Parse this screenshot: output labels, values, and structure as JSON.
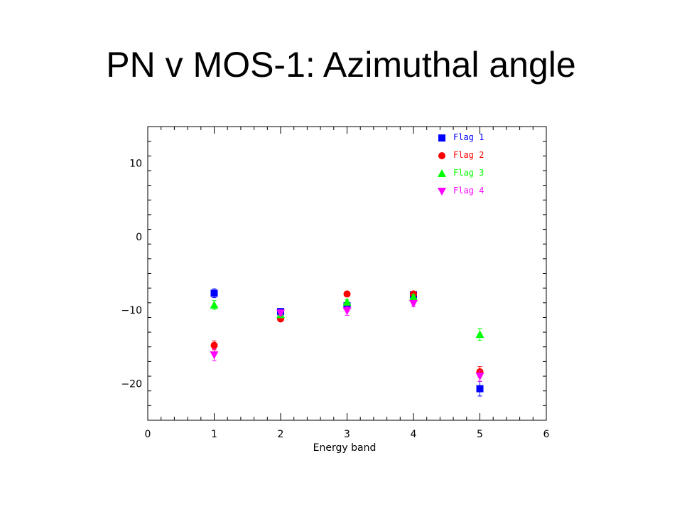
{
  "title": "PN v MOS-1: Azimuthal angle",
  "chart_data": {
    "type": "scatter",
    "title": "",
    "xlabel": "Energy band",
    "ylabel": "",
    "xlim": [
      0,
      6
    ],
    "ylim": [
      -25,
      15
    ],
    "xticks": [
      0,
      1,
      2,
      3,
      4,
      5,
      6
    ],
    "xtick_labels": [
      "0",
      "1",
      "2",
      "3",
      "4",
      "5",
      "6"
    ],
    "yticks": [
      10,
      0,
      -10,
      -20
    ],
    "ytick_labels": [
      "10",
      "0",
      "−10",
      "−20"
    ],
    "grid": false,
    "legend_position": "top-right",
    "series": [
      {
        "name": "Flag 1",
        "color": "#0000ff",
        "marker": "square",
        "x": [
          1,
          2,
          3,
          4,
          5
        ],
        "y": [
          -7.7,
          -10.2,
          -9.4,
          -7.9,
          -20.7
        ],
        "err": [
          0.6,
          0.3,
          0.3,
          0.3,
          1.0
        ]
      },
      {
        "name": "Flag 2",
        "color": "#ff0000",
        "marker": "circle",
        "x": [
          1,
          2,
          3,
          4,
          5
        ],
        "y": [
          -14.8,
          -11.2,
          -7.8,
          -7.8,
          -18.4
        ],
        "err": [
          0.6,
          0.3,
          0.3,
          0.3,
          0.7
        ]
      },
      {
        "name": "Flag 3",
        "color": "#00ff00",
        "marker": "triangle-up",
        "x": [
          1,
          2,
          3,
          4,
          5
        ],
        "y": [
          -9.3,
          -10.6,
          -8.9,
          -8.2,
          -13.3
        ],
        "err": [
          0.6,
          0.3,
          0.3,
          0.3,
          0.8
        ]
      },
      {
        "name": "Flag 4",
        "color": "#ff00ff",
        "marker": "triangle-down",
        "x": [
          1,
          2,
          3,
          4,
          5
        ],
        "y": [
          -16.1,
          -10.4,
          -10.1,
          -9.1,
          -19.0
        ],
        "err": [
          0.8,
          0.3,
          0.6,
          0.4,
          0.7
        ]
      }
    ]
  }
}
